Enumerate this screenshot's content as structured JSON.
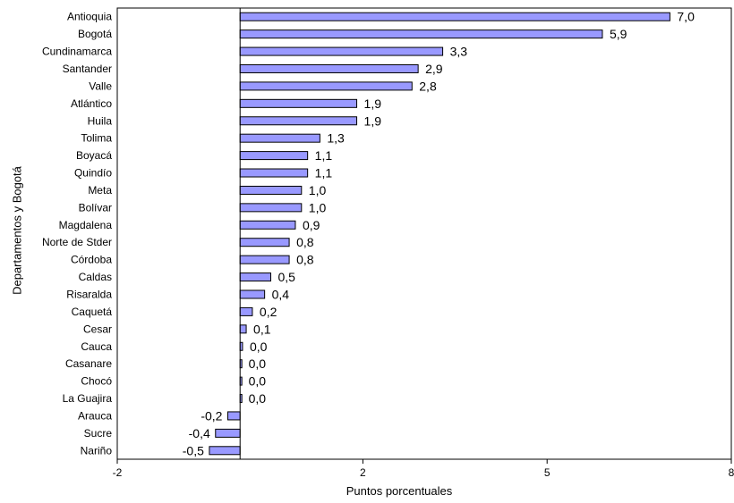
{
  "chart_data": {
    "type": "bar",
    "orientation": "horizontal",
    "title": "",
    "xlabel": "Puntos porcentuales",
    "ylabel": "Departamentos y Bogotá",
    "xlim": [
      -2,
      8
    ],
    "xticks": [
      -2,
      2,
      5,
      8
    ],
    "xtick_labels": [
      "-2",
      "2",
      "5",
      "8"
    ],
    "grid": false,
    "legend": "none",
    "bar_color": "#9999ff",
    "categories": [
      "Antioquia",
      "Bogotá",
      "Cundinamarca",
      "Santander",
      "Valle",
      "Atlántico",
      "Huila",
      "Tolima",
      "Boyacá",
      "Quindío",
      "Meta",
      "Bolívar",
      "Magdalena",
      "Norte de Stder",
      "Córdoba",
      "Caldas",
      "Risaralda",
      "Caquetá",
      "Cesar",
      "Cauca",
      "Casanare",
      "Chocó",
      "La Guajira",
      "Arauca",
      "Sucre",
      "Nariño"
    ],
    "values": [
      7.0,
      5.9,
      3.3,
      2.9,
      2.8,
      1.9,
      1.9,
      1.3,
      1.1,
      1.1,
      1.0,
      1.0,
      0.9,
      0.8,
      0.8,
      0.5,
      0.4,
      0.2,
      0.1,
      0.04,
      0.02,
      0.02,
      0.02,
      -0.2,
      -0.4,
      -0.5
    ],
    "value_labels": [
      "7,0",
      "5,9",
      "3,3",
      "2,9",
      "2,8",
      "1,9",
      "1,9",
      "1,3",
      "1,1",
      "1,1",
      "1,0",
      "1,0",
      "0,9",
      "0,8",
      "0,8",
      "0,5",
      "0,4",
      "0,2",
      "0,1",
      "0,0",
      "0,0",
      "0,0",
      "0,0",
      "-0,2",
      "-0,4",
      "-0,5"
    ]
  }
}
